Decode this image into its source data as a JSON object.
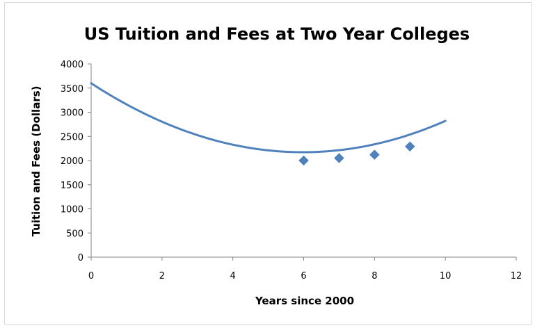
{
  "chart_data": {
    "type": "scatter",
    "title": "US Tuition and Fees at Two Year Colleges",
    "xlabel": "Years since 2000",
    "ylabel": "Tuition and Fees (Dollars)",
    "xlim": [
      0,
      12
    ],
    "ylim": [
      0,
      4000
    ],
    "x_ticks": [
      0,
      2,
      4,
      6,
      8,
      10,
      12
    ],
    "y_ticks": [
      0,
      500,
      1000,
      1500,
      2000,
      2500,
      3000,
      3500,
      4000
    ],
    "grid": false,
    "legend": "none",
    "series": [
      {
        "kind": "points",
        "marker": "diamond",
        "x": [
          6,
          7,
          8,
          9
        ],
        "y": [
          2000,
          2050,
          2120,
          2290
        ]
      },
      {
        "kind": "trendline",
        "fit": "polynomial-2",
        "coefficients": [
          3600,
          -478,
          40
        ],
        "x_range": [
          0,
          10
        ]
      }
    ],
    "colors": {
      "series": "#4f81bd",
      "axis": "#868686",
      "text": "#000000",
      "border": "#d9d9d9"
    }
  }
}
